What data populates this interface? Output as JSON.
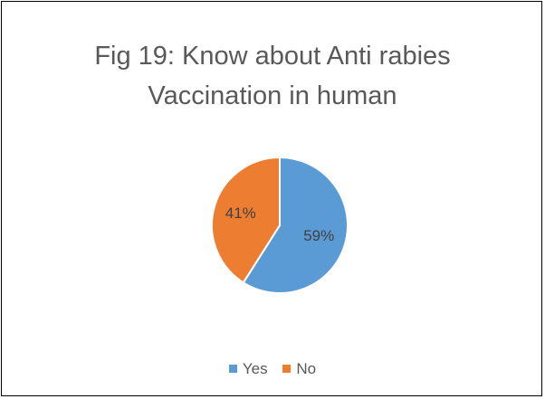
{
  "chart_data": {
    "type": "pie",
    "title_lines": [
      "Fig 19: Know about Anti rabies",
      "Vaccination in human"
    ],
    "categories": [
      "Yes",
      "No"
    ],
    "values": [
      59,
      41
    ],
    "data_labels": [
      "59%",
      "41%"
    ],
    "colors": [
      "#5B9BD5",
      "#ED7D31"
    ],
    "legend_position": "bottom"
  }
}
